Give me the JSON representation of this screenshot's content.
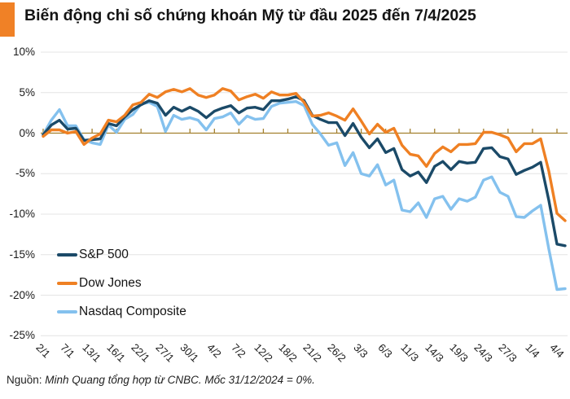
{
  "title": "Biến động chỉ số chứng khoán Mỹ từ đầu 2025 đến 7/4/2025",
  "colors": {
    "accent": "#F08126",
    "gridline": "#E4E4E4",
    "zero_axis": "#A3802F",
    "text": "#1a1a1a"
  },
  "y_axis": {
    "labels": [
      "10%",
      "5%",
      "0%",
      "-5%",
      "-10%",
      "-15%",
      "-20%",
      "-25%"
    ],
    "values": [
      10,
      5,
      0,
      -5,
      -10,
      -15,
      -20,
      -25
    ]
  },
  "x_axis": {
    "labels": [
      "2/1",
      "7/1",
      "13/1",
      "16/1",
      "22/1",
      "27/1",
      "30/1",
      "4/2",
      "7/2",
      "12/2",
      "18/2",
      "21/2",
      "26/2",
      "3/3",
      "6/3",
      "11/3",
      "14/3",
      "19/3",
      "24/3",
      "27/3",
      "1/4",
      "4/4"
    ],
    "tick_indices": [
      0,
      3,
      6,
      9,
      12,
      15,
      18,
      21,
      24,
      27,
      30,
      33,
      36,
      39,
      42,
      45,
      48,
      51,
      54,
      57,
      60,
      63
    ]
  },
  "legend": {
    "entries": [
      "S&P 500",
      "Dow Jones",
      "Nasdaq Composite"
    ]
  },
  "source": {
    "prefix": "Nguồn:",
    "text": " Minh Quang tổng hợp từ CNBC. Mốc 31/12/2024 = 0%."
  },
  "chart_data": {
    "type": "line",
    "title": "Biến động chỉ số chứng khoán Mỹ từ đầu 2025 đến 7/4/2025",
    "unit": "%",
    "baseline_note": "31/12/2024 = 0%",
    "ylim": [
      -25,
      10
    ],
    "y_ticks": [
      10,
      5,
      0,
      -5,
      -10,
      -15,
      -20,
      -25
    ],
    "grid": true,
    "legend_position": "inside-left-bottom",
    "x": [
      "2/1",
      "3/1",
      "6/1",
      "7/1",
      "8/1",
      "10/1",
      "13/1",
      "14/1",
      "15/1",
      "16/1",
      "17/1",
      "21/1",
      "22/1",
      "23/1",
      "24/1",
      "27/1",
      "28/1",
      "29/1",
      "30/1",
      "31/1",
      "3/2",
      "4/2",
      "5/2",
      "6/2",
      "7/2",
      "10/2",
      "11/2",
      "12/2",
      "13/2",
      "14/2",
      "18/2",
      "19/2",
      "20/2",
      "21/2",
      "24/2",
      "25/2",
      "26/2",
      "27/2",
      "28/2",
      "3/3",
      "4/3",
      "5/3",
      "6/3",
      "7/3",
      "10/3",
      "11/3",
      "12/3",
      "13/3",
      "14/3",
      "17/3",
      "18/3",
      "19/3",
      "20/3",
      "21/3",
      "24/3",
      "25/3",
      "26/3",
      "27/3",
      "28/3",
      "31/3",
      "1/4",
      "2/4",
      "3/4",
      "4/4",
      "7/4"
    ],
    "series": [
      {
        "name": "S&P 500",
        "color": "#1B4A68",
        "values": [
          -0.2,
          1.0,
          1.6,
          0.5,
          0.6,
          -0.9,
          -0.8,
          -0.7,
          1.2,
          0.9,
          2.0,
          2.9,
          3.5,
          4.0,
          3.7,
          2.2,
          3.2,
          2.7,
          3.2,
          2.7,
          1.9,
          2.7,
          3.1,
          3.4,
          2.5,
          3.1,
          3.2,
          2.9,
          4.0,
          4.0,
          4.2,
          4.5,
          4.0,
          2.2,
          1.7,
          1.3,
          1.3,
          -0.3,
          1.2,
          -0.5,
          -1.8,
          -0.7,
          -2.4,
          -1.9,
          -4.5,
          -5.3,
          -4.8,
          -6.1,
          -4.1,
          -3.5,
          -4.5,
          -3.5,
          -3.7,
          -3.6,
          -1.9,
          -1.8,
          -2.9,
          -3.2,
          -5.1,
          -4.6,
          -4.2,
          -3.6,
          -8.3,
          -13.7,
          -13.9
        ]
      },
      {
        "name": "Dow Jones",
        "color": "#EF8023",
        "values": [
          -0.4,
          0.4,
          0.4,
          0.0,
          0.2,
          -1.4,
          -0.6,
          -0.1,
          1.6,
          1.4,
          2.2,
          3.5,
          3.8,
          4.8,
          4.4,
          5.1,
          5.4,
          5.1,
          5.5,
          4.7,
          4.4,
          4.7,
          5.5,
          5.2,
          4.1,
          4.5,
          4.8,
          4.3,
          5.1,
          4.7,
          4.7,
          4.9,
          3.8,
          2.1,
          2.2,
          2.5,
          2.1,
          1.6,
          3.0,
          1.5,
          -0.1,
          1.1,
          0.1,
          0.6,
          -1.5,
          -2.6,
          -2.8,
          -4.1,
          -2.5,
          -1.7,
          -2.3,
          -1.4,
          -1.4,
          -1.3,
          0.1,
          0.1,
          -0.2,
          -0.6,
          -2.3,
          -1.3,
          -1.3,
          -0.7,
          -4.7,
          -9.9,
          -10.8
        ]
      },
      {
        "name": "Nasdaq Composite",
        "color": "#84C1EE",
        "values": [
          -0.2,
          1.6,
          2.9,
          0.9,
          0.9,
          -0.8,
          -1.2,
          -1.4,
          1.0,
          0.1,
          1.7,
          2.3,
          3.6,
          3.8,
          3.3,
          0.2,
          2.2,
          1.7,
          1.9,
          1.6,
          0.4,
          1.8,
          2.0,
          2.5,
          1.1,
          2.1,
          1.7,
          1.8,
          3.3,
          3.7,
          3.8,
          3.9,
          3.4,
          1.1,
          -0.1,
          -1.5,
          -1.2,
          -4.0,
          -2.4,
          -5.0,
          -5.3,
          -3.9,
          -6.4,
          -5.8,
          -9.5,
          -9.7,
          -8.6,
          -10.4,
          -8.1,
          -7.8,
          -9.4,
          -8.1,
          -8.4,
          -7.9,
          -5.8,
          -5.4,
          -7.3,
          -7.8,
          -10.3,
          -10.4,
          -9.6,
          -8.9,
          -14.3,
          -19.3,
          -19.2
        ]
      }
    ]
  }
}
